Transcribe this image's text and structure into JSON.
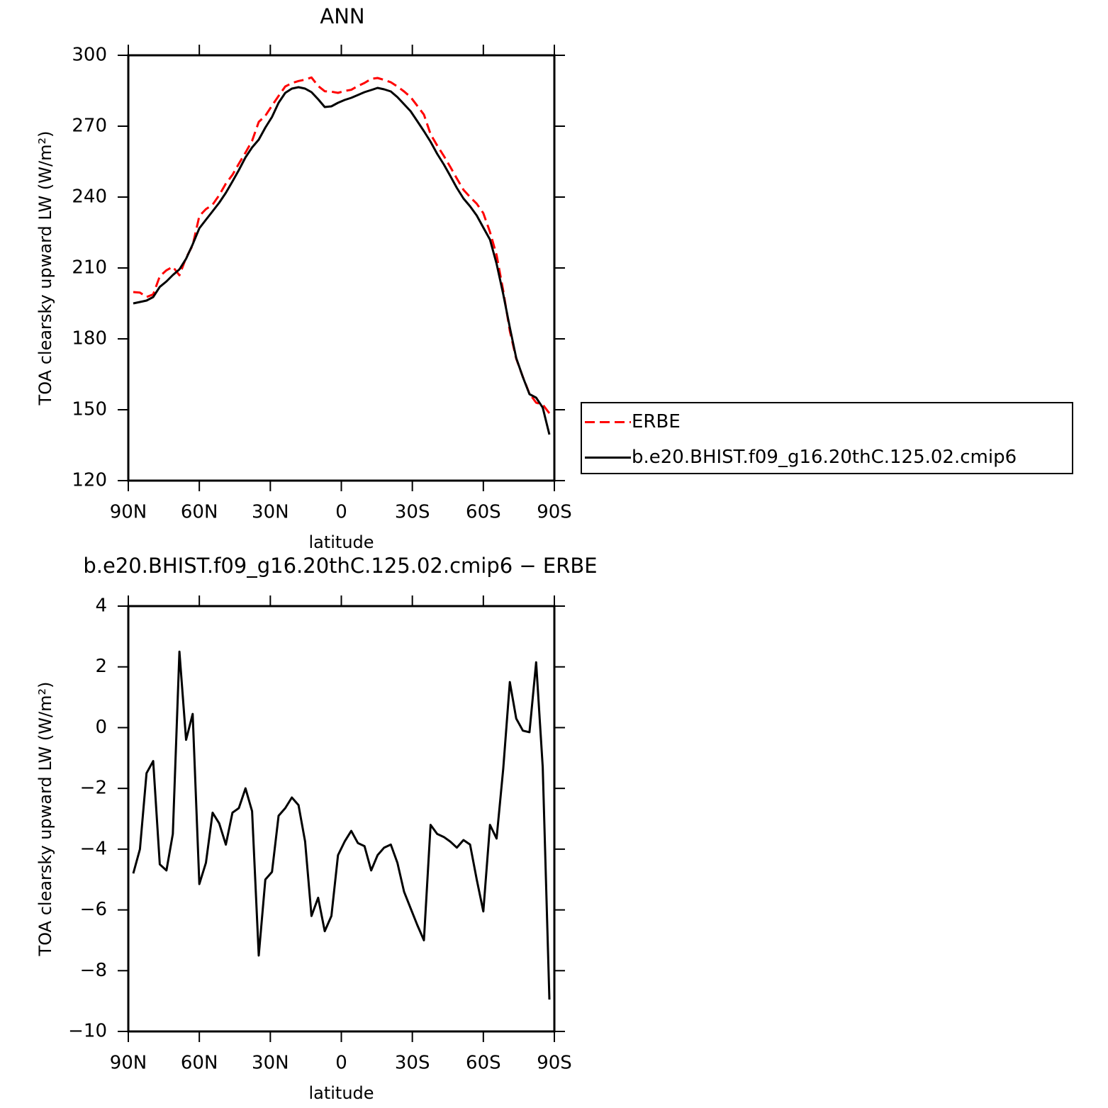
{
  "chart_data": [
    {
      "type": "line",
      "title": "ANN",
      "xlabel": "latitude",
      "ylabel": "TOA clearsky upward LW (W/m²)",
      "x": [
        87.9,
        85.1,
        82.3,
        79.5,
        76.7,
        73.9,
        71.2,
        68.4,
        65.6,
        62.8,
        60.0,
        57.2,
        54.4,
        51.6,
        48.8,
        46.0,
        43.3,
        40.5,
        37.7,
        34.9,
        32.1,
        29.3,
        26.5,
        23.7,
        20.9,
        18.1,
        15.3,
        12.6,
        9.8,
        7.0,
        4.2,
        1.4,
        -1.4,
        -4.2,
        -7.0,
        -9.8,
        -12.6,
        -15.3,
        -18.1,
        -20.9,
        -23.7,
        -26.5,
        -29.3,
        -32.1,
        -34.9,
        -37.7,
        -40.5,
        -43.3,
        -46.0,
        -48.8,
        -51.6,
        -54.4,
        -57.2,
        -60.0,
        -62.8,
        -65.6,
        -68.4,
        -71.2,
        -73.9,
        -76.7,
        -79.5,
        -82.3,
        -85.1,
        -87.9
      ],
      "series": [
        {
          "name": "ERBE",
          "color": "#ff0000",
          "dashed": true,
          "values": [
            199.8,
            199.6,
            197.7,
            198.8,
            206.5,
            209.0,
            210.5,
            206.9,
            214.3,
            219.6,
            232.0,
            234.9,
            236.8,
            240.8,
            245.7,
            249.4,
            254.1,
            258.8,
            263.8,
            271.8,
            274.4,
            278.7,
            282.8,
            286.8,
            288.2,
            289.1,
            289.7,
            290.6,
            287.0,
            284.8,
            284.6,
            284.1,
            284.9,
            285.4,
            287.0,
            288.3,
            290.0,
            290.4,
            289.6,
            288.6,
            286.8,
            284.7,
            282.3,
            278.6,
            274.9,
            266.6,
            261.8,
            257.4,
            252.8,
            247.9,
            243.1,
            240.0,
            237.2,
            233.2,
            225.2,
            215.5,
            200.3,
            183.3,
            171.6,
            163.9,
            156.8,
            153.0,
            152.2,
            148.5
          ]
        },
        {
          "name": "b.e20.BHIST.f09_g16.20thC.125.02.cmip6",
          "color": "#000000",
          "dashed": false,
          "values": [
            195.0,
            195.6,
            196.2,
            197.7,
            202.0,
            204.3,
            207.0,
            209.4,
            213.9,
            220.0,
            226.8,
            230.4,
            234.0,
            237.6,
            241.8,
            246.6,
            251.4,
            256.8,
            261.0,
            264.3,
            269.4,
            273.9,
            279.9,
            284.1,
            285.9,
            286.5,
            285.9,
            284.4,
            281.4,
            278.1,
            278.4,
            279.9,
            281.1,
            282.0,
            283.2,
            284.4,
            285.3,
            286.2,
            285.6,
            284.7,
            282.3,
            279.3,
            276.3,
            272.1,
            267.9,
            263.4,
            258.3,
            253.8,
            249.0,
            243.9,
            239.4,
            236.1,
            232.2,
            227.1,
            222.0,
            211.8,
            198.9,
            184.8,
            171.9,
            163.8,
            156.6,
            155.1,
            150.9,
            139.5
          ]
        }
      ],
      "xlim": [
        90,
        -90
      ],
      "xticks": [
        {
          "value": 90,
          "label": "90N"
        },
        {
          "value": 60,
          "label": "60N"
        },
        {
          "value": 30,
          "label": "30N"
        },
        0,
        {
          "value": -30,
          "label": "30S"
        },
        {
          "value": -60,
          "label": "60S"
        },
        {
          "value": -90,
          "label": "90S"
        }
      ],
      "ylim": [
        120,
        300
      ],
      "yticks": [
        120,
        150,
        180,
        210,
        240,
        270,
        300
      ],
      "legend": "right"
    },
    {
      "type": "line",
      "title": "b.e20.BHIST.f09_g16.20thC.125.02.cmip6 − ERBE",
      "xlabel": "latitude",
      "ylabel": "TOA clearsky upward LW (W/m²)",
      "x": [
        87.9,
        85.1,
        82.3,
        79.5,
        76.7,
        73.9,
        71.2,
        68.4,
        65.6,
        62.8,
        60.0,
        57.2,
        54.4,
        51.6,
        48.8,
        46.0,
        43.3,
        40.5,
        37.7,
        34.9,
        32.1,
        29.3,
        26.5,
        23.7,
        20.9,
        18.1,
        15.3,
        12.6,
        9.8,
        7.0,
        4.2,
        1.4,
        -1.4,
        -4.2,
        -7.0,
        -9.8,
        -12.6,
        -15.3,
        -18.1,
        -20.9,
        -23.7,
        -26.5,
        -29.3,
        -32.1,
        -34.9,
        -37.7,
        -40.5,
        -43.3,
        -46.0,
        -48.8,
        -51.6,
        -54.4,
        -57.2,
        -60.0,
        -62.8,
        -65.6,
        -68.4,
        -71.2,
        -73.9,
        -76.7,
        -79.5,
        -82.3,
        -85.1,
        -87.9
      ],
      "series": [
        {
          "color": "#000000",
          "dashed": false,
          "values": [
            -4.8,
            -4.0,
            -1.5,
            -1.1,
            -4.5,
            -4.7,
            -3.5,
            2.5,
            -0.4,
            0.45,
            -5.15,
            -4.45,
            -2.8,
            -3.15,
            -3.85,
            -2.8,
            -2.65,
            -2.0,
            -2.75,
            -7.5,
            -5.0,
            -4.75,
            -2.9,
            -2.65,
            -2.3,
            -2.55,
            -3.75,
            -6.2,
            -5.6,
            -6.7,
            -6.2,
            -4.2,
            -3.75,
            -3.4,
            -3.8,
            -3.9,
            -4.7,
            -4.2,
            -3.95,
            -3.85,
            -4.45,
            -5.4,
            -5.95,
            -6.5,
            -7.0,
            -3.2,
            -3.5,
            -3.6,
            -3.75,
            -3.95,
            -3.7,
            -3.85,
            -5.0,
            -6.05,
            -3.2,
            -3.65,
            -1.35,
            1.5,
            0.3,
            -0.1,
            -0.15,
            2.15,
            -1.3,
            -8.95
          ]
        }
      ],
      "xlim": [
        90,
        -90
      ],
      "xticks": [
        {
          "value": 90,
          "label": "90N"
        },
        {
          "value": 60,
          "label": "60N"
        },
        {
          "value": 30,
          "label": "30N"
        },
        0,
        {
          "value": -30,
          "label": "30S"
        },
        {
          "value": -60,
          "label": "60S"
        },
        {
          "value": -90,
          "label": "90S"
        }
      ],
      "ylim": [
        -10,
        4
      ],
      "yticks": [
        {
          "value": -10,
          "label": "−10"
        },
        {
          "value": -8,
          "label": "−8"
        },
        {
          "value": -6,
          "label": "−6"
        },
        {
          "value": -4,
          "label": "−4"
        },
        {
          "value": -2,
          "label": "−2"
        },
        0,
        2,
        4
      ]
    }
  ]
}
